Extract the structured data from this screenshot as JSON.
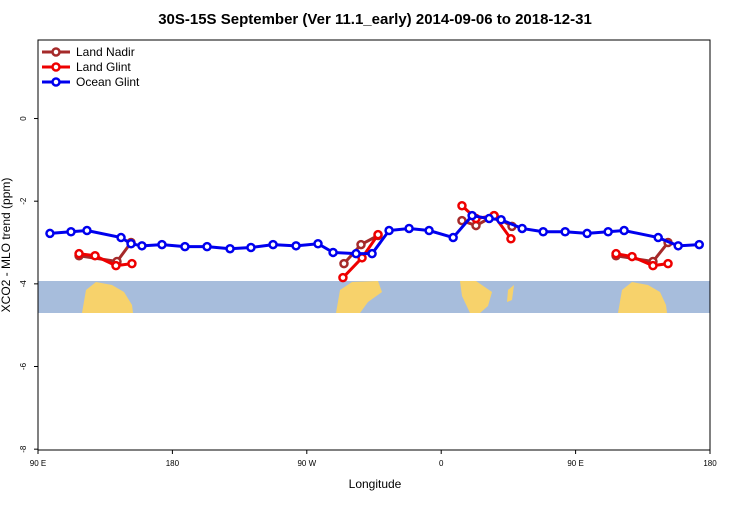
{
  "chart_data": {
    "type": "line",
    "title": "30S-15S September (Ver 11.1_early)   2014-09-06 to 2018-12-31",
    "x_label": "Longitude",
    "y_label": "XCO2 - MLO trend (ppm)",
    "xlim": [
      90,
      540
    ],
    "ylim": [
      -8.02,
      1.9
    ],
    "xticks": [
      {
        "value": 90,
        "label": "90 E"
      },
      {
        "value": 180,
        "label": "180"
      },
      {
        "value": 270,
        "label": "90 W"
      },
      {
        "value": 360,
        "label": "0"
      },
      {
        "value": 450,
        "label": "90 E"
      },
      {
        "value": 540,
        "label": "180"
      }
    ],
    "yticks": [
      0,
      -2,
      -4,
      -6,
      -8
    ],
    "legend": "top-left",
    "series": [
      {
        "name": "Land Nadir",
        "color": "#a52a2a",
        "x": [
          117.5,
          142.9,
          152.3,
          null,
          294.9,
          306.3,
          317.7,
          null,
          373.9,
          383.3,
          395.4,
          407.4,
          null,
          477.1,
          501.8,
          511.9
        ],
        "values": [
          -3.32,
          -3.46,
          -3.0,
          null,
          -3.51,
          -3.05,
          -2.83,
          null,
          -2.47,
          -2.59,
          -2.35,
          -2.61,
          null,
          -3.32,
          -3.46,
          -3.0
        ]
      },
      {
        "name": "Land Glint",
        "color": "#ee0000",
        "x": [
          117.5,
          128.2,
          142.2,
          152.9,
          null,
          294.2,
          307.0,
          317.7,
          null,
          373.9,
          383.3,
          395.4,
          406.7,
          null,
          477.1,
          487.8,
          501.8,
          511.9
        ],
        "values": [
          -3.27,
          -3.32,
          -3.56,
          -3.51,
          null,
          -3.85,
          -3.37,
          -2.81,
          null,
          -2.11,
          -2.42,
          -2.35,
          -2.91,
          null,
          -3.27,
          -3.34,
          -3.56,
          -3.51
        ]
      },
      {
        "name": "Ocean Glint",
        "color": "#0000ee",
        "x": [
          98.0,
          112.1,
          122.8,
          145.6,
          152.3,
          159.6,
          173.0,
          188.4,
          203.2,
          218.6,
          232.6,
          247.4,
          262.8,
          277.5,
          287.6,
          303.0,
          313.7,
          325.1,
          338.5,
          351.9,
          368.0,
          380.7,
          392.1,
          400.1,
          414.2,
          428.3,
          443.0,
          457.7,
          471.8,
          482.5,
          505.3,
          518.7,
          532.8
        ],
        "values": [
          -2.78,
          -2.74,
          -2.71,
          -2.88,
          -3.03,
          -3.08,
          -3.05,
          -3.1,
          -3.1,
          -3.15,
          -3.12,
          -3.05,
          -3.08,
          -3.03,
          -3.24,
          -3.27,
          -3.27,
          -2.71,
          -2.66,
          -2.71,
          -2.88,
          -2.35,
          -2.42,
          -2.45,
          -2.66,
          -2.74,
          -2.74,
          -2.78,
          -2.74,
          -2.71,
          -2.88,
          -3.08,
          -3.05
        ]
      }
    ]
  }
}
